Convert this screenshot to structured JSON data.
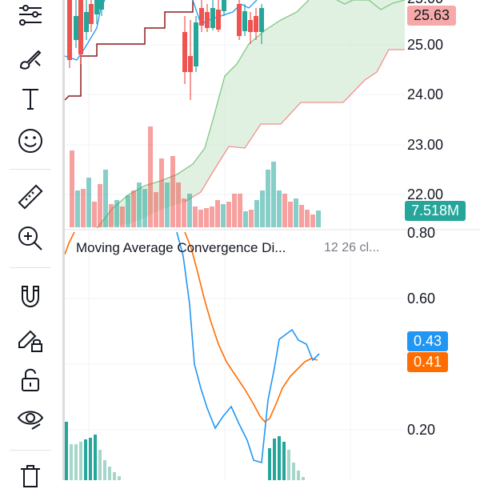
{
  "toolbar": {
    "tools": [
      {
        "name": "trend-line-tools-icon"
      },
      {
        "name": "brush-icon"
      },
      {
        "name": "text-tool-icon"
      },
      {
        "name": "emoji-icon"
      },
      {
        "name": "ruler-icon"
      },
      {
        "name": "zoom-in-icon"
      },
      {
        "name": "magnet-icon"
      },
      {
        "name": "lock-drawings-icon"
      },
      {
        "name": "unlock-icon"
      },
      {
        "name": "eye-icon"
      },
      {
        "name": "trash-icon"
      }
    ]
  },
  "price_axis": {
    "labels": [
      "25.00",
      "24.00",
      "23.00",
      "22.00"
    ],
    "top_cut_label": "25.00",
    "current_price": "25.63",
    "current_price_color": "#f7a9a9",
    "volume_label": "7.518M",
    "volume_color": "#26a69a"
  },
  "macd_pane": {
    "title": "Moving Average Convergence Di...",
    "params": "12 26 cl...",
    "axis_labels": [
      "0.80",
      "0.60",
      "0.20"
    ],
    "macd_value": "0.43",
    "macd_color": "#2196f3",
    "signal_value": "0.41",
    "signal_color": "#ff6d00"
  },
  "colors": {
    "up": "#26a69a",
    "down": "#ef5350",
    "cloud": "#c8e6c9",
    "baseline": "#8d1c1c"
  }
}
